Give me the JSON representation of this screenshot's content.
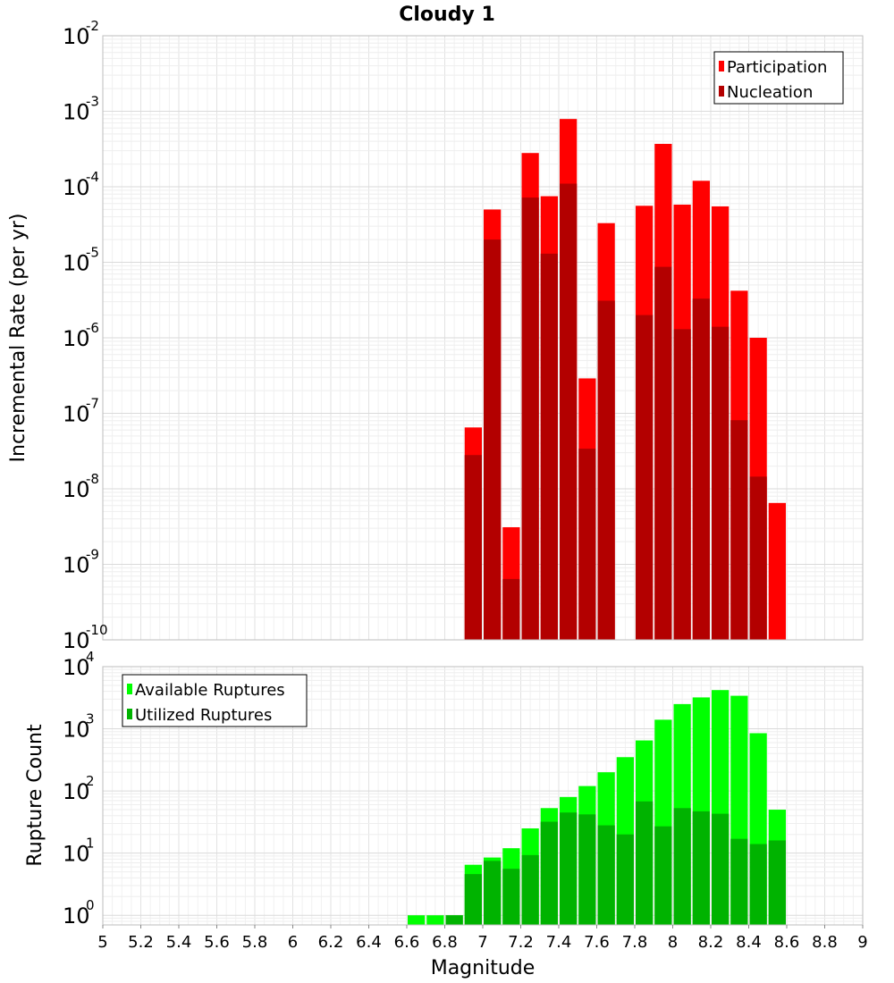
{
  "chart_data": [
    {
      "type": "bar",
      "title": "Cloudy 1",
      "xlabel": "Magnitude",
      "ylabel": "Incremental Rate (per yr)",
      "yscale": "log",
      "xlim": [
        5,
        9
      ],
      "ylim": [
        1e-10,
        0.01
      ],
      "bin_width": 0.1,
      "x": [
        6.95,
        7.05,
        7.15,
        7.25,
        7.35,
        7.45,
        7.55,
        7.65,
        7.85,
        7.95,
        8.05,
        8.15,
        8.25,
        8.35,
        8.45,
        8.55
      ],
      "y_tick_exponents": [
        -10,
        -9,
        -8,
        -7,
        -6,
        -5,
        -4,
        -3,
        -2
      ],
      "legend": {
        "position": "top-right"
      },
      "grid": true,
      "series": [
        {
          "name": "Participation",
          "color": "#ff0000",
          "values": [
            6.5e-08,
            5e-05,
            3.1e-09,
            0.00028,
            7.5e-05,
            0.00079,
            2.9e-07,
            3.3e-05,
            5.6e-05,
            0.00037,
            5.8e-05,
            0.00012,
            5.5e-05,
            4.2e-06,
            1e-06,
            6.5e-09
          ]
        },
        {
          "name": "Nucleation",
          "color": "#b30000",
          "values": [
            2.8e-08,
            2e-05,
            6.4e-10,
            7.2e-05,
            1.3e-05,
            0.00011,
            3.4e-08,
            3.1e-06,
            2e-06,
            8.7e-06,
            1.3e-06,
            3.3e-06,
            1.4e-06,
            8.1e-08,
            1.45e-08,
            null
          ]
        }
      ]
    },
    {
      "type": "bar",
      "title": "",
      "xlabel": "Magnitude",
      "ylabel": "Rupture Count",
      "yscale": "log",
      "xlim": [
        5,
        9
      ],
      "ylim": [
        0.7,
        10000
      ],
      "bin_width": 0.1,
      "x": [
        6.65,
        6.75,
        6.85,
        6.95,
        7.05,
        7.15,
        7.25,
        7.35,
        7.45,
        7.55,
        7.65,
        7.75,
        7.85,
        7.95,
        8.05,
        8.15,
        8.25,
        8.35,
        8.45,
        8.55
      ],
      "x_ticks": [
        "5",
        "5.2",
        "5.4",
        "5.6",
        "5.8",
        "6",
        "6.2",
        "6.4",
        "6.6",
        "6.8",
        "7",
        "7.2",
        "7.4",
        "7.6",
        "7.8",
        "8",
        "8.2",
        "8.4",
        "8.6",
        "8.8",
        "9"
      ],
      "y_tick_exponents": [
        0,
        1,
        2,
        3,
        4
      ],
      "legend": {
        "position": "top-left"
      },
      "grid": true,
      "series": [
        {
          "name": "Available Ruptures",
          "color": "#00ff00",
          "values": [
            1,
            1,
            1,
            6.5,
            8.5,
            12,
            25,
            53,
            80,
            120,
            200,
            350,
            650,
            1400,
            2500,
            3200,
            4200,
            3400,
            850,
            50
          ]
        },
        {
          "name": "Utilized Ruptures",
          "color": "#00b300",
          "values": [
            null,
            null,
            1,
            4.6,
            7.5,
            5.6,
            9.3,
            32,
            45,
            42,
            28,
            20,
            68,
            27,
            53,
            47,
            43,
            17,
            14,
            16
          ]
        }
      ]
    }
  ]
}
